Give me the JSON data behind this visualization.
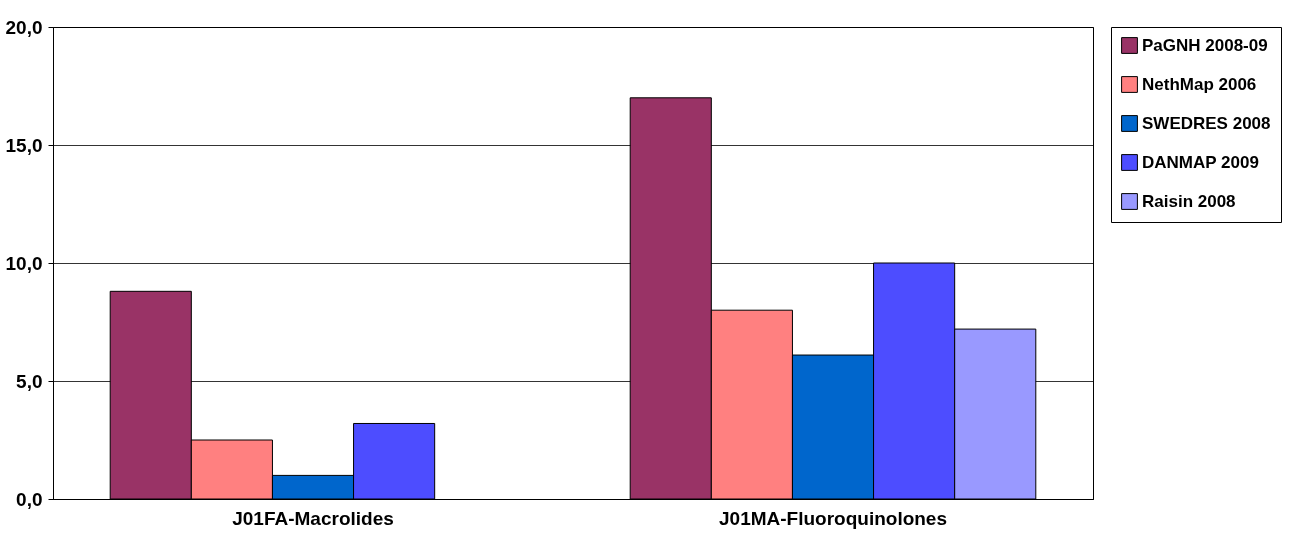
{
  "chart_data": {
    "type": "bar",
    "categories": [
      "J01FA-Macrolides",
      "J01MA-Fluoroquinolones"
    ],
    "series": [
      {
        "name": "PaGNH 2008-09",
        "color": "#993366",
        "values": [
          8.8,
          17.0
        ]
      },
      {
        "name": "NethMap 2006",
        "color": "#ff8080",
        "values": [
          2.5,
          8.0
        ]
      },
      {
        "name": "SWEDRES 2008",
        "color": "#0066cc",
        "values": [
          1.0,
          6.1
        ]
      },
      {
        "name": "DANMAP 2009",
        "color": "#4d4dff",
        "values": [
          3.2,
          10.0
        ]
      },
      {
        "name": "Raisin 2008",
        "color": "#9999ff",
        "values": [
          null,
          7.2
        ]
      }
    ],
    "ylim": [
      0,
      20
    ],
    "yticks": [
      {
        "value": 0,
        "label": "0,0"
      },
      {
        "value": 5,
        "label": "5,0"
      },
      {
        "value": 10,
        "label": "10,0"
      },
      {
        "value": 15,
        "label": "15,0"
      },
      {
        "value": 20,
        "label": "20,0"
      }
    ],
    "grid": "y",
    "legend": "right"
  }
}
